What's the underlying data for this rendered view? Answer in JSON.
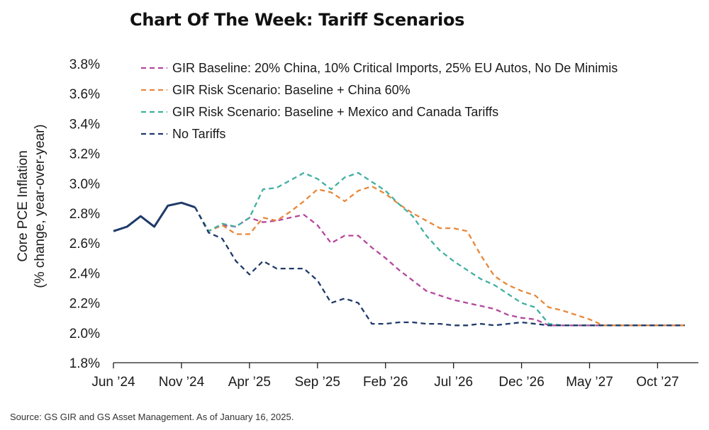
{
  "title": "Chart Of The Week: Tariff Scenarios",
  "source": "Source: GS GIR and GS Asset Management. As of January 16, 2025.",
  "chart_data": {
    "type": "line",
    "ylabel_lines": [
      "Core PCE Inflation",
      "(% change, year-over-year)"
    ],
    "ylim": [
      1.8,
      3.8
    ],
    "yticks": [
      1.8,
      2.0,
      2.2,
      2.4,
      2.6,
      2.8,
      3.0,
      3.2,
      3.4,
      3.6,
      3.8
    ],
    "ytick_labels": [
      "1.8%",
      "2.0%",
      "2.2%",
      "2.4%",
      "2.6%",
      "2.8%",
      "3.0%",
      "3.2%",
      "3.4%",
      "3.6%",
      "3.8%"
    ],
    "x_range": [
      "2024-06",
      "2028-01"
    ],
    "xticks": [
      "2024-06",
      "2024-11",
      "2025-04",
      "2025-09",
      "2026-02",
      "2026-07",
      "2026-12",
      "2027-05",
      "2027-10"
    ],
    "xtick_labels": [
      "Jun ’24",
      "Nov ’24",
      "Apr ’25",
      "Sep ’25",
      "Feb ’26",
      "Jul ’26",
      "Dec ’26",
      "May ’27",
      "Oct ’27"
    ],
    "legend_position": "top",
    "history": {
      "color": "#1f3a68",
      "points": [
        [
          "2024-06",
          2.68
        ],
        [
          "2024-07",
          2.71
        ],
        [
          "2024-08",
          2.78
        ],
        [
          "2024-09",
          2.71
        ],
        [
          "2024-10",
          2.85
        ],
        [
          "2024-11",
          2.87
        ],
        [
          "2024-12",
          2.84
        ]
      ]
    },
    "series": [
      {
        "name": "GIR Baseline: 20% China, 10% Critical Imports, 25% EU Autos, No De Minimis",
        "color": "#b5479c",
        "points": [
          [
            "2024-12",
            2.84
          ],
          [
            "2025-01",
            2.68
          ],
          [
            "2025-02",
            2.72
          ],
          [
            "2025-03",
            2.71
          ],
          [
            "2025-04",
            2.77
          ],
          [
            "2025-05",
            2.74
          ],
          [
            "2025-06",
            2.75
          ],
          [
            "2025-07",
            2.77
          ],
          [
            "2025-08",
            2.79
          ],
          [
            "2025-09",
            2.72
          ],
          [
            "2025-10",
            2.6
          ],
          [
            "2025-11",
            2.65
          ],
          [
            "2025-12",
            2.65
          ],
          [
            "2026-01",
            2.57
          ],
          [
            "2026-02",
            2.5
          ],
          [
            "2026-03",
            2.42
          ],
          [
            "2026-04",
            2.35
          ],
          [
            "2026-05",
            2.28
          ],
          [
            "2026-06",
            2.25
          ],
          [
            "2026-07",
            2.22
          ],
          [
            "2026-08",
            2.2
          ],
          [
            "2026-09",
            2.18
          ],
          [
            "2026-10",
            2.16
          ],
          [
            "2026-11",
            2.12
          ],
          [
            "2026-12",
            2.1
          ],
          [
            "2027-01",
            2.09
          ],
          [
            "2027-02",
            2.05
          ],
          [
            "2027-03",
            2.05
          ],
          [
            "2027-06",
            2.05
          ],
          [
            "2027-12",
            2.05
          ]
        ]
      },
      {
        "name": "GIR Risk Scenario: Baseline + China 60%",
        "color": "#e8873a",
        "points": [
          [
            "2024-12",
            2.84
          ],
          [
            "2025-01",
            2.68
          ],
          [
            "2025-02",
            2.72
          ],
          [
            "2025-03",
            2.66
          ],
          [
            "2025-04",
            2.66
          ],
          [
            "2025-05",
            2.77
          ],
          [
            "2025-06",
            2.75
          ],
          [
            "2025-07",
            2.81
          ],
          [
            "2025-08",
            2.88
          ],
          [
            "2025-09",
            2.96
          ],
          [
            "2025-10",
            2.94
          ],
          [
            "2025-11",
            2.88
          ],
          [
            "2025-12",
            2.95
          ],
          [
            "2026-01",
            2.98
          ],
          [
            "2026-02",
            2.93
          ],
          [
            "2026-03",
            2.86
          ],
          [
            "2026-04",
            2.8
          ],
          [
            "2026-05",
            2.75
          ],
          [
            "2026-06",
            2.7
          ],
          [
            "2026-07",
            2.7
          ],
          [
            "2026-08",
            2.68
          ],
          [
            "2026-09",
            2.52
          ],
          [
            "2026-10",
            2.38
          ],
          [
            "2026-11",
            2.32
          ],
          [
            "2026-12",
            2.28
          ],
          [
            "2027-01",
            2.25
          ],
          [
            "2027-02",
            2.17
          ],
          [
            "2027-03",
            2.15
          ],
          [
            "2027-04",
            2.12
          ],
          [
            "2027-05",
            2.09
          ],
          [
            "2027-06",
            2.05
          ],
          [
            "2027-09",
            2.05
          ],
          [
            "2027-12",
            2.05
          ]
        ]
      },
      {
        "name": "GIR Risk Scenario: Baseline + Mexico and Canada Tariffs",
        "color": "#3fb0a0",
        "points": [
          [
            "2024-12",
            2.84
          ],
          [
            "2025-01",
            2.68
          ],
          [
            "2025-02",
            2.73
          ],
          [
            "2025-03",
            2.71
          ],
          [
            "2025-04",
            2.77
          ],
          [
            "2025-05",
            2.96
          ],
          [
            "2025-06",
            2.97
          ],
          [
            "2025-07",
            3.02
          ],
          [
            "2025-08",
            3.07
          ],
          [
            "2025-09",
            3.03
          ],
          [
            "2025-10",
            2.96
          ],
          [
            "2025-11",
            3.04
          ],
          [
            "2025-12",
            3.07
          ],
          [
            "2026-01",
            3.01
          ],
          [
            "2026-02",
            2.95
          ],
          [
            "2026-03",
            2.86
          ],
          [
            "2026-04",
            2.78
          ],
          [
            "2026-05",
            2.65
          ],
          [
            "2026-06",
            2.55
          ],
          [
            "2026-07",
            2.48
          ],
          [
            "2026-08",
            2.42
          ],
          [
            "2026-09",
            2.36
          ],
          [
            "2026-10",
            2.32
          ],
          [
            "2026-11",
            2.26
          ],
          [
            "2026-12",
            2.2
          ],
          [
            "2027-01",
            2.17
          ],
          [
            "2027-02",
            2.06
          ],
          [
            "2027-03",
            2.05
          ],
          [
            "2027-06",
            2.05
          ],
          [
            "2027-12",
            2.05
          ]
        ]
      },
      {
        "name": "No Tariffs",
        "color": "#1f3a68",
        "points": [
          [
            "2024-12",
            2.84
          ],
          [
            "2025-01",
            2.67
          ],
          [
            "2025-02",
            2.63
          ],
          [
            "2025-03",
            2.48
          ],
          [
            "2025-04",
            2.39
          ],
          [
            "2025-05",
            2.48
          ],
          [
            "2025-06",
            2.43
          ],
          [
            "2025-07",
            2.43
          ],
          [
            "2025-08",
            2.43
          ],
          [
            "2025-09",
            2.35
          ],
          [
            "2025-10",
            2.2
          ],
          [
            "2025-11",
            2.23
          ],
          [
            "2025-12",
            2.2
          ],
          [
            "2026-01",
            2.06
          ],
          [
            "2026-02",
            2.06
          ],
          [
            "2026-03",
            2.07
          ],
          [
            "2026-04",
            2.07
          ],
          [
            "2026-05",
            2.06
          ],
          [
            "2026-06",
            2.06
          ],
          [
            "2026-07",
            2.05
          ],
          [
            "2026-08",
            2.05
          ],
          [
            "2026-09",
            2.06
          ],
          [
            "2026-10",
            2.05
          ],
          [
            "2026-11",
            2.06
          ],
          [
            "2026-12",
            2.07
          ],
          [
            "2027-01",
            2.06
          ],
          [
            "2027-02",
            2.05
          ],
          [
            "2027-06",
            2.05
          ],
          [
            "2027-12",
            2.05
          ]
        ]
      }
    ]
  }
}
